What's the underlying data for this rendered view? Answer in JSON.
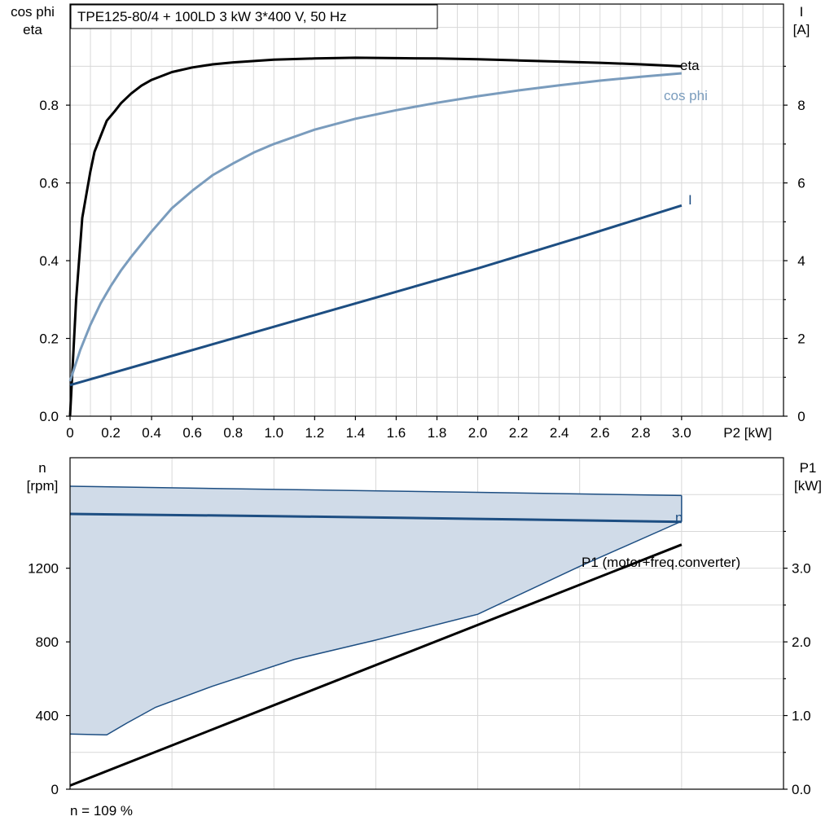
{
  "chart_data": [
    {
      "type": "line",
      "title": "TPE125-80/4 + 100LD   3 kW   3*400 V, 50 Hz",
      "xlabel": "P2 [kW]",
      "ylabel_left": [
        "cos phi",
        "eta"
      ],
      "ylabel_right": [
        "I",
        "[A]"
      ],
      "xlim": [
        0,
        3.5
      ],
      "ylim_left": [
        0,
        1.06
      ],
      "ylim_right": [
        0,
        10.6
      ],
      "x_ticks": [
        "0",
        "0.2",
        "0.4",
        "0.6",
        "0.8",
        "1.0",
        "1.2",
        "1.4",
        "1.6",
        "1.8",
        "2.0",
        "2.2",
        "2.4",
        "2.6",
        "2.8",
        "3.0"
      ],
      "y_left_ticks": [
        "0.0",
        "0.2",
        "0.4",
        "0.6",
        "0.8"
      ],
      "y_right_ticks": [
        "0",
        "2",
        "4",
        "6",
        "8"
      ],
      "grid": true,
      "series": [
        {
          "name": "eta",
          "axis": "left",
          "color": "#000000",
          "points": [
            [
              0.0,
              0.0
            ],
            [
              0.03,
              0.3
            ],
            [
              0.06,
              0.51
            ],
            [
              0.1,
              0.63
            ],
            [
              0.12,
              0.68
            ],
            [
              0.15,
              0.72
            ],
            [
              0.18,
              0.76
            ],
            [
              0.22,
              0.785
            ],
            [
              0.25,
              0.805
            ],
            [
              0.3,
              0.83
            ],
            [
              0.35,
              0.85
            ],
            [
              0.4,
              0.865
            ],
            [
              0.5,
              0.885
            ],
            [
              0.6,
              0.897
            ],
            [
              0.7,
              0.905
            ],
            [
              0.8,
              0.91
            ],
            [
              1.0,
              0.917
            ],
            [
              1.2,
              0.92
            ],
            [
              1.4,
              0.922
            ],
            [
              1.6,
              0.921
            ],
            [
              1.8,
              0.92
            ],
            [
              2.0,
              0.918
            ],
            [
              2.2,
              0.915
            ],
            [
              2.4,
              0.912
            ],
            [
              2.6,
              0.909
            ],
            [
              2.8,
              0.905
            ],
            [
              3.0,
              0.9
            ]
          ]
        },
        {
          "name": "cos phi",
          "axis": "left",
          "color": "#7a9cbd",
          "points": [
            [
              0.0,
              0.09
            ],
            [
              0.05,
              0.17
            ],
            [
              0.1,
              0.235
            ],
            [
              0.15,
              0.29
            ],
            [
              0.2,
              0.335
            ],
            [
              0.25,
              0.375
            ],
            [
              0.3,
              0.41
            ],
            [
              0.4,
              0.475
            ],
            [
              0.5,
              0.535
            ],
            [
              0.6,
              0.58
            ],
            [
              0.7,
              0.62
            ],
            [
              0.8,
              0.65
            ],
            [
              0.9,
              0.678
            ],
            [
              1.0,
              0.7
            ],
            [
              1.2,
              0.737
            ],
            [
              1.4,
              0.765
            ],
            [
              1.6,
              0.787
            ],
            [
              1.8,
              0.806
            ],
            [
              2.0,
              0.823
            ],
            [
              2.2,
              0.838
            ],
            [
              2.4,
              0.851
            ],
            [
              2.6,
              0.863
            ],
            [
              2.8,
              0.873
            ],
            [
              3.0,
              0.882
            ]
          ]
        },
        {
          "name": "I",
          "axis": "right",
          "color": "#1d4e82",
          "points": [
            [
              0.0,
              0.8
            ],
            [
              0.5,
              1.55
            ],
            [
              1.0,
              2.3
            ],
            [
              1.5,
              3.05
            ],
            [
              2.0,
              3.8
            ],
            [
              2.5,
              4.6
            ],
            [
              3.0,
              5.42
            ]
          ]
        }
      ]
    },
    {
      "type": "area",
      "xlabel": "",
      "ylabel_left": [
        "n",
        "[rpm]"
      ],
      "ylabel_right": [
        "P1",
        "[kW]"
      ],
      "xlim": [
        0,
        3.5
      ],
      "ylim_left": [
        0,
        1800
      ],
      "ylim_right": [
        0,
        4.5
      ],
      "y_left_ticks": [
        "0",
        "400",
        "800",
        "1200"
      ],
      "y_right_ticks": [
        "0.0",
        "1.0",
        "2.0",
        "3.0"
      ],
      "grid": true,
      "annotation": "n = 109 %",
      "series": [
        {
          "name": "n",
          "axis": "left",
          "color": "#1d4e82",
          "points": [
            [
              0.0,
              1495
            ],
            [
              1.0,
              1483
            ],
            [
              2.0,
              1468
            ],
            [
              3.0,
              1452
            ]
          ]
        },
        {
          "name": "P1 (motor+freq.converter)",
          "axis": "right",
          "color": "#000000",
          "points": [
            [
              0.0,
              0.05
            ],
            [
              3.0,
              3.32
            ]
          ]
        }
      ],
      "range_band": {
        "color": "#d0dbe8",
        "edge_color": "#1d4e82",
        "upper": [
          [
            0.0,
            1645
          ],
          [
            1.0,
            1628
          ],
          [
            2.0,
            1612
          ],
          [
            3.0,
            1595
          ]
        ],
        "lower": [
          [
            0.0,
            300
          ],
          [
            0.18,
            295
          ],
          [
            0.28,
            360
          ],
          [
            0.42,
            445
          ],
          [
            0.7,
            560
          ],
          [
            1.1,
            705
          ],
          [
            1.5,
            810
          ],
          [
            2.0,
            950
          ],
          [
            2.5,
            1210
          ],
          [
            3.0,
            1455
          ]
        ]
      }
    }
  ]
}
